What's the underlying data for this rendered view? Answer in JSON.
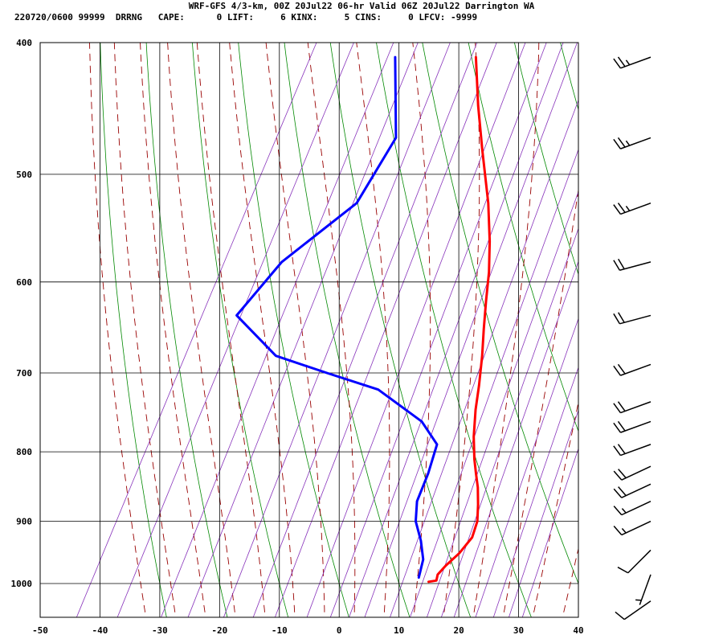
{
  "header": {
    "line1": "WRF-GFS 4/3-km, 00Z 20Jul22 06-hr Valid 06Z 20Jul22 Darrington WA",
    "line2": "220720/0600 99999  DRRNG   CAPE:      0 LIFT:     6 KINX:     5 CINS:     0 LFCV: -9999"
  },
  "chart_data": {
    "type": "line",
    "title": "WRF-GFS 4/3-km, 00Z 20Jul22 06-hr Valid 06Z 20Jul22 Darrington WA",
    "xlabel": "",
    "ylabel": "",
    "x_axis": {
      "range": [
        -50,
        40
      ],
      "ticks": [
        -50,
        -40,
        -30,
        -20,
        -10,
        0,
        10,
        20,
        30,
        40
      ]
    },
    "y_axis": {
      "scale": "log",
      "range_hpa": [
        400,
        1040
      ],
      "ticks": [
        400,
        500,
        600,
        700,
        800,
        900,
        1000
      ],
      "inverted": true
    },
    "grid": true,
    "background_lines": {
      "isotherms_color": "#000000",
      "dry_adiabats_color": "#008800",
      "moist_adiabats_color": "#990000",
      "mixing_ratio_color": "#8833bb"
    },
    "series": [
      {
        "color": "#ff0000",
        "points": [
          [
            -22.0,
            410
          ],
          [
            -17.5,
            445
          ],
          [
            -13.0,
            480
          ],
          [
            -7.5,
            525
          ],
          [
            -4.0,
            560
          ],
          [
            -1.5,
            590
          ],
          [
            0.5,
            620
          ],
          [
            2.5,
            650
          ],
          [
            4.5,
            680
          ],
          [
            6.5,
            715
          ],
          [
            8.0,
            745
          ],
          [
            10.0,
            780
          ],
          [
            12.0,
            810
          ],
          [
            13.5,
            830
          ],
          [
            15.0,
            850
          ],
          [
            16.5,
            875
          ],
          [
            17.8,
            900
          ],
          [
            18.3,
            925
          ],
          [
            17.5,
            950
          ],
          [
            16.3,
            970
          ],
          [
            15.7,
            985
          ],
          [
            16.0,
            995
          ],
          [
            14.8,
            997
          ]
        ]
      },
      {
        "color": "#0000ff",
        "points": [
          [
            -35.5,
            410
          ],
          [
            -28.5,
            470
          ],
          [
            -29.5,
            525
          ],
          [
            -37.0,
            580
          ],
          [
            -40.0,
            635
          ],
          [
            -30.0,
            680
          ],
          [
            -20.0,
            700
          ],
          [
            -10.0,
            720
          ],
          [
            0.0,
            760
          ],
          [
            4.5,
            790
          ],
          [
            5.5,
            830
          ],
          [
            6.0,
            870
          ],
          [
            7.5,
            900
          ],
          [
            10.0,
            930
          ],
          [
            12.0,
            960
          ],
          [
            12.8,
            990
          ]
        ]
      }
    ],
    "wind_barbs": [
      {
        "p": 410,
        "dir": 250,
        "kt": 25
      },
      {
        "p": 470,
        "dir": 250,
        "kt": 25
      },
      {
        "p": 525,
        "dir": 250,
        "kt": 25
      },
      {
        "p": 580,
        "dir": 255,
        "kt": 20
      },
      {
        "p": 635,
        "dir": 255,
        "kt": 20
      },
      {
        "p": 690,
        "dir": 250,
        "kt": 20
      },
      {
        "p": 735,
        "dir": 250,
        "kt": 20
      },
      {
        "p": 760,
        "dir": 250,
        "kt": 20
      },
      {
        "p": 790,
        "dir": 250,
        "kt": 20
      },
      {
        "p": 820,
        "dir": 245,
        "kt": 20
      },
      {
        "p": 845,
        "dir": 245,
        "kt": 20
      },
      {
        "p": 870,
        "dir": 245,
        "kt": 15
      },
      {
        "p": 900,
        "dir": 245,
        "kt": 15
      },
      {
        "p": 945,
        "dir": 225,
        "kt": 10
      },
      {
        "p": 985,
        "dir": 200,
        "kt": 5
      },
      {
        "p": 1030,
        "dir": 235,
        "kt": 10
      }
    ]
  }
}
